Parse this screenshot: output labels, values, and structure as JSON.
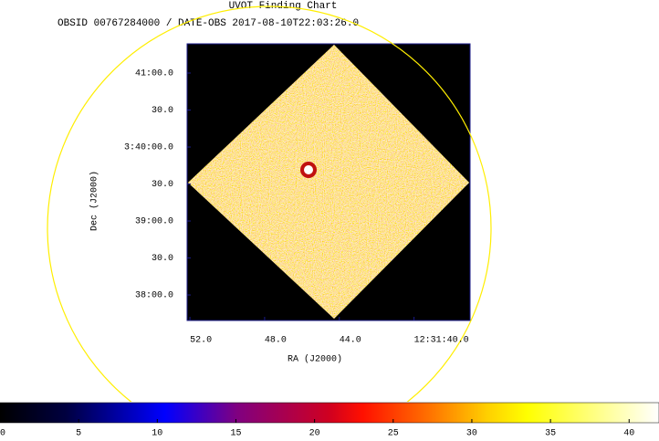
{
  "chart_data": {
    "type": "image",
    "title": "UVOT Finding Chart",
    "subtitle": "OBSID 00767284000 / DATE-OBS 2017-08-10T22:03:26.0",
    "x_label": "RA (J2000)",
    "y_label": "Dec (J2000)",
    "xlim": [
      45112.15,
      45097.0
    ],
    "xticks": [
      {
        "value": 45112,
        "label": "52.0"
      },
      {
        "value": 45108,
        "label": "48.0"
      },
      {
        "value": 45104,
        "label": "44.0"
      },
      {
        "value": 45100,
        "label": "12:31:40.0"
      }
    ],
    "ylim": [
      13059.3,
      13283.7
    ],
    "yticks": [
      {
        "value": 13260,
        "label": "41:00.0"
      },
      {
        "value": 13230,
        "label": "30.0"
      },
      {
        "value": 13200,
        "label": "3:40:00.0"
      },
      {
        "value": 13170,
        "label": "30.0"
      },
      {
        "value": 13140,
        "label": "39:00.0"
      },
      {
        "value": 13110,
        "label": "30.0"
      },
      {
        "value": 13080,
        "label": "38:00.0"
      }
    ],
    "colorbar": {
      "lim": [
        0,
        41.9
      ],
      "ticks": [
        0,
        5,
        10,
        15,
        20,
        25,
        30,
        35,
        40
      ]
    }
  }
}
